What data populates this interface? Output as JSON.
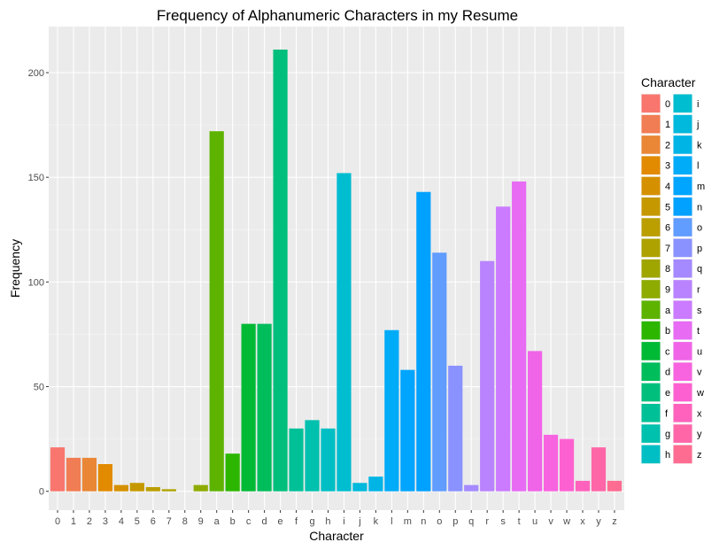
{
  "chart_data": {
    "type": "bar",
    "title": "Frequency of Alphanumeric Characters in  my Resume",
    "xlabel": "Character",
    "ylabel": "Frequency",
    "ylim": [
      -9,
      222
    ],
    "yticks": [
      0,
      50,
      100,
      150,
      200
    ],
    "grid": true,
    "legend": {
      "title": "Character",
      "placement": "right",
      "columns": 2
    },
    "categories": [
      "0",
      "1",
      "2",
      "3",
      "4",
      "5",
      "6",
      "7",
      "8",
      "9",
      "a",
      "b",
      "c",
      "d",
      "e",
      "f",
      "g",
      "h",
      "i",
      "j",
      "k",
      "l",
      "m",
      "n",
      "o",
      "p",
      "q",
      "r",
      "s",
      "t",
      "u",
      "v",
      "w",
      "x",
      "y",
      "z"
    ],
    "values": [
      21,
      16,
      16,
      13,
      3,
      4,
      2,
      1,
      0,
      3,
      172,
      18,
      80,
      80,
      211,
      30,
      34,
      30,
      152,
      4,
      7,
      77,
      58,
      143,
      114,
      60,
      3,
      110,
      136,
      148,
      67,
      27,
      25,
      5,
      21,
      5
    ],
    "colors": [
      "#F8766D",
      "#F17D54",
      "#E98737",
      "#E28A00",
      "#D59000",
      "#C69800",
      "#BB9E00",
      "#AEA200",
      "#A0A600",
      "#8DAB00",
      "#5DB300",
      "#2CB600",
      "#00B935",
      "#00BD5C",
      "#00BF7D",
      "#00C097",
      "#00C0AE",
      "#00BFC4",
      "#00BDD0",
      "#00B9DC",
      "#00B4E6",
      "#00ABF8",
      "#00A5FF",
      "#00A1FF",
      "#619CFF",
      "#8A92FF",
      "#A58AFF",
      "#B983FF",
      "#CB7BFF",
      "#E76BF3",
      "#F064E8",
      "#F863DF",
      "#FD61D1",
      "#FF62BC",
      "#FF66A8",
      "#FF6C91"
    ]
  }
}
